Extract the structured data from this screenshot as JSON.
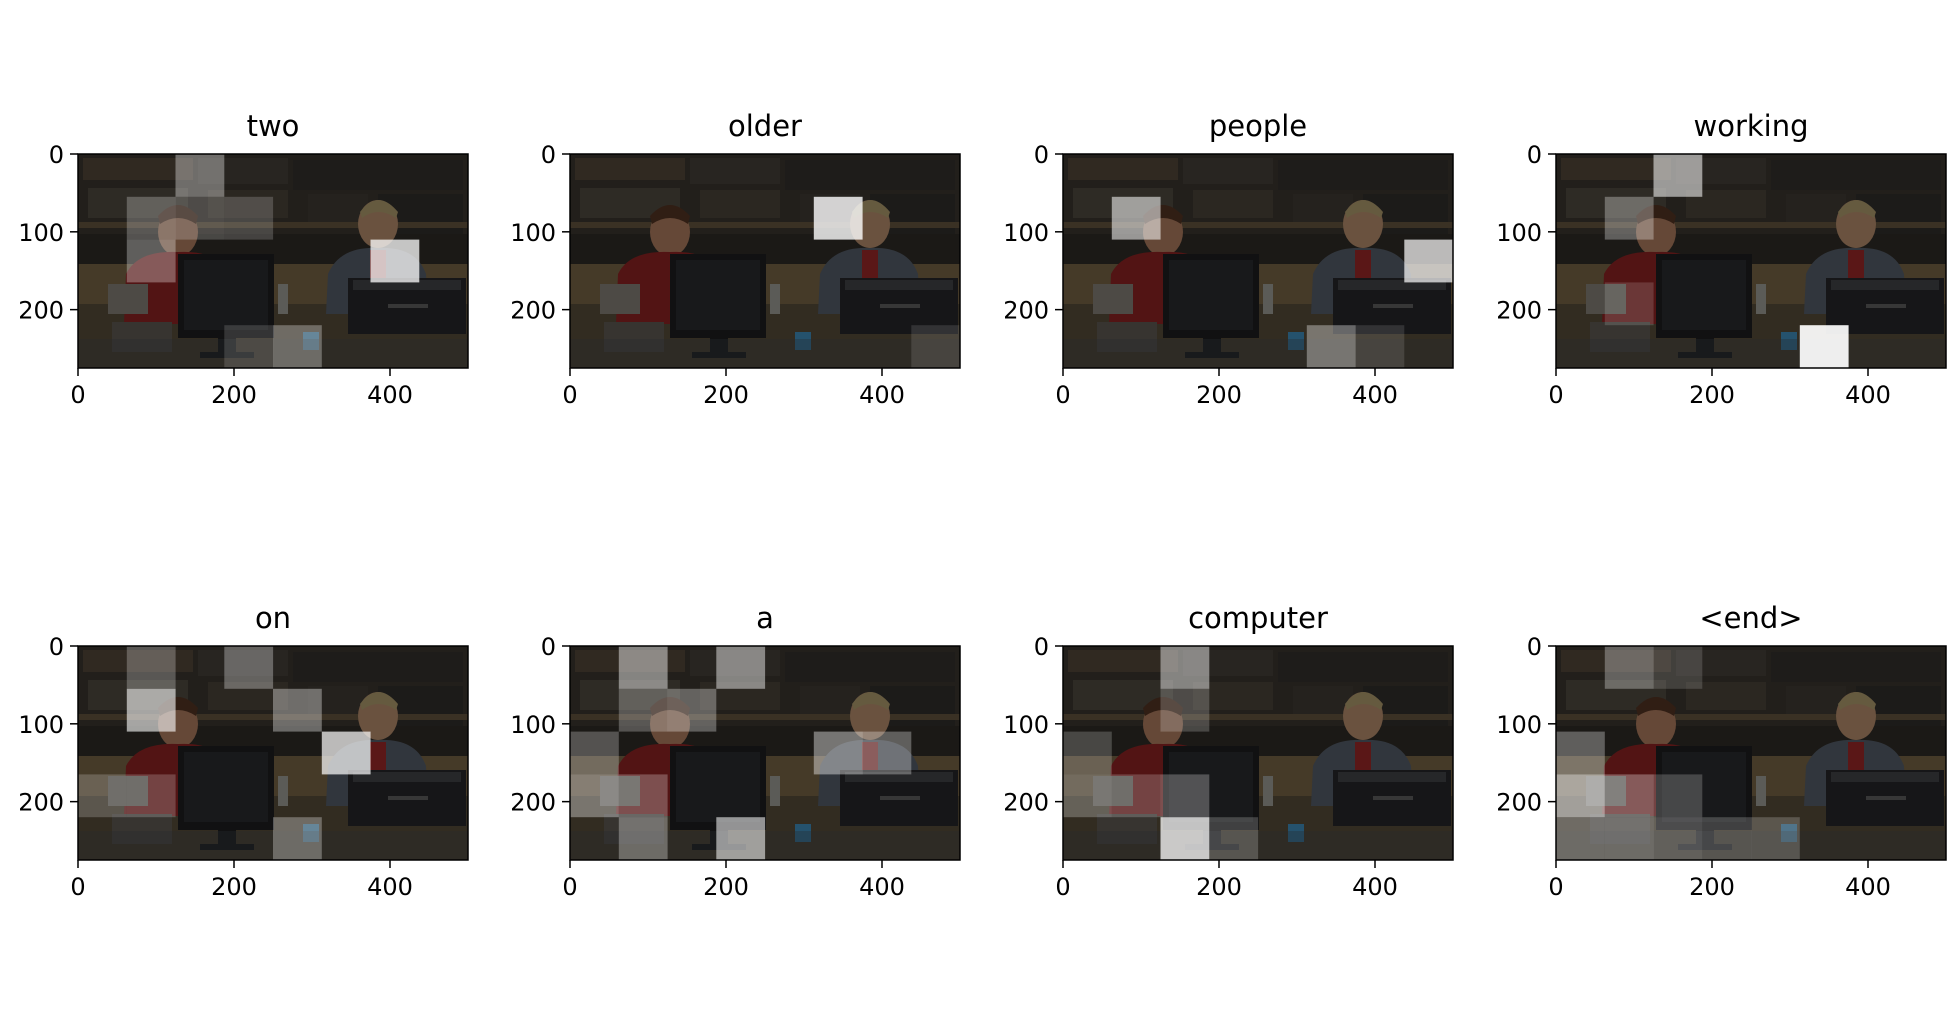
{
  "chart_data": [
    {
      "type": "heatmap",
      "title": "two",
      "xlim": [
        0,
        500
      ],
      "ylim": [
        275,
        0
      ],
      "xticks": [
        "0",
        "200",
        "400"
      ],
      "yticks": [
        "0",
        "100",
        "200"
      ],
      "attention_grid_cols": 8,
      "attention_grid_rows": 5,
      "highlights": [
        {
          "col": 2,
          "row": 0,
          "alpha": 0.35
        },
        {
          "col": 1,
          "row": 1,
          "alpha": 0.25
        },
        {
          "col": 2,
          "row": 1,
          "alpha": 0.2
        },
        {
          "col": 3,
          "row": 1,
          "alpha": 0.18
        },
        {
          "col": 1,
          "row": 2,
          "alpha": 0.3
        },
        {
          "col": 6,
          "row": 2,
          "alpha": 0.75
        },
        {
          "col": 4,
          "row": 4,
          "alpha": 0.3
        },
        {
          "col": 3,
          "row": 4,
          "alpha": 0.15
        }
      ]
    },
    {
      "type": "heatmap",
      "title": "older",
      "xlim": [
        0,
        500
      ],
      "ylim": [
        275,
        0
      ],
      "xticks": [
        "0",
        "200",
        "400"
      ],
      "yticks": [
        "0",
        "100",
        "200"
      ],
      "attention_grid_cols": 8,
      "attention_grid_rows": 5,
      "highlights": [
        {
          "col": 5,
          "row": 1,
          "alpha": 0.8
        },
        {
          "col": 7,
          "row": 4,
          "alpha": 0.12
        }
      ]
    },
    {
      "type": "heatmap",
      "title": "people",
      "xlim": [
        0,
        500
      ],
      "ylim": [
        275,
        0
      ],
      "xticks": [
        "0",
        "200",
        "400"
      ],
      "yticks": [
        "0",
        "100",
        "200"
      ],
      "attention_grid_cols": 8,
      "attention_grid_rows": 5,
      "highlights": [
        {
          "col": 1,
          "row": 1,
          "alpha": 0.55
        },
        {
          "col": 7,
          "row": 2,
          "alpha": 0.7
        },
        {
          "col": 5,
          "row": 4,
          "alpha": 0.35
        },
        {
          "col": 6,
          "row": 4,
          "alpha": 0.12
        }
      ]
    },
    {
      "type": "heatmap",
      "title": "working",
      "xlim": [
        0,
        500
      ],
      "ylim": [
        275,
        0
      ],
      "xticks": [
        "0",
        "200",
        "400"
      ],
      "yticks": [
        "0",
        "100",
        "200"
      ],
      "attention_grid_cols": 8,
      "attention_grid_rows": 5,
      "highlights": [
        {
          "col": 2,
          "row": 0,
          "alpha": 0.55
        },
        {
          "col": 1,
          "row": 1,
          "alpha": 0.3
        },
        {
          "col": 5,
          "row": 4,
          "alpha": 0.92
        },
        {
          "col": 1,
          "row": 3,
          "alpha": 0.15
        }
      ]
    },
    {
      "type": "heatmap",
      "title": "on",
      "xlim": [
        0,
        500
      ],
      "ylim": [
        275,
        0
      ],
      "xticks": [
        "0",
        "200",
        "400"
      ],
      "yticks": [
        "0",
        "100",
        "200"
      ],
      "attention_grid_cols": 8,
      "attention_grid_rows": 5,
      "highlights": [
        {
          "col": 1,
          "row": 0,
          "alpha": 0.25
        },
        {
          "col": 3,
          "row": 0,
          "alpha": 0.3
        },
        {
          "col": 1,
          "row": 1,
          "alpha": 0.6
        },
        {
          "col": 4,
          "row": 1,
          "alpha": 0.35
        },
        {
          "col": 5,
          "row": 2,
          "alpha": 0.7
        },
        {
          "col": 1,
          "row": 3,
          "alpha": 0.2
        },
        {
          "col": 0,
          "row": 3,
          "alpha": 0.2
        },
        {
          "col": 4,
          "row": 4,
          "alpha": 0.3
        }
      ]
    },
    {
      "type": "heatmap",
      "title": "a",
      "xlim": [
        0,
        500
      ],
      "ylim": [
        275,
        0
      ],
      "xticks": [
        "0",
        "200",
        "400"
      ],
      "yticks": [
        "0",
        "100",
        "200"
      ],
      "attention_grid_cols": 8,
      "attention_grid_rows": 5,
      "highlights": [
        {
          "col": 1,
          "row": 0,
          "alpha": 0.45
        },
        {
          "col": 3,
          "row": 0,
          "alpha": 0.45
        },
        {
          "col": 2,
          "row": 1,
          "alpha": 0.3
        },
        {
          "col": 1,
          "row": 1,
          "alpha": 0.25
        },
        {
          "col": 5,
          "row": 2,
          "alpha": 0.4
        },
        {
          "col": 6,
          "row": 2,
          "alpha": 0.3
        },
        {
          "col": 0,
          "row": 2,
          "alpha": 0.25
        },
        {
          "col": 0,
          "row": 3,
          "alpha": 0.35
        },
        {
          "col": 1,
          "row": 3,
          "alpha": 0.25
        },
        {
          "col": 3,
          "row": 4,
          "alpha": 0.55
        },
        {
          "col": 1,
          "row": 4,
          "alpha": 0.3
        }
      ]
    },
    {
      "type": "heatmap",
      "title": "computer",
      "xlim": [
        0,
        500
      ],
      "ylim": [
        275,
        0
      ],
      "xticks": [
        "0",
        "200",
        "400"
      ],
      "yticks": [
        "0",
        "100",
        "200"
      ],
      "attention_grid_cols": 8,
      "attention_grid_rows": 5,
      "highlights": [
        {
          "col": 2,
          "row": 0,
          "alpha": 0.45
        },
        {
          "col": 2,
          "row": 1,
          "alpha": 0.2
        },
        {
          "col": 2,
          "row": 3,
          "alpha": 0.25
        },
        {
          "col": 2,
          "row": 4,
          "alpha": 0.75
        },
        {
          "col": 3,
          "row": 4,
          "alpha": 0.2
        },
        {
          "col": 0,
          "row": 3,
          "alpha": 0.25
        },
        {
          "col": 0,
          "row": 2,
          "alpha": 0.2
        },
        {
          "col": 1,
          "row": 3,
          "alpha": 0.2
        }
      ]
    },
    {
      "type": "heatmap",
      "title": "<end>",
      "xlim": [
        0,
        500
      ],
      "ylim": [
        275,
        0
      ],
      "xticks": [
        "0",
        "200",
        "400"
      ],
      "yticks": [
        "0",
        "100",
        "200"
      ],
      "attention_grid_cols": 8,
      "attention_grid_rows": 5,
      "highlights": [
        {
          "col": 1,
          "row": 0,
          "alpha": 0.3
        },
        {
          "col": 2,
          "row": 0,
          "alpha": 0.15
        },
        {
          "col": 0,
          "row": 3,
          "alpha": 0.55
        },
        {
          "col": 0,
          "row": 2,
          "alpha": 0.3
        },
        {
          "col": 1,
          "row": 3,
          "alpha": 0.3
        },
        {
          "col": 1,
          "row": 4,
          "alpha": 0.3
        },
        {
          "col": 0,
          "row": 4,
          "alpha": 0.3
        },
        {
          "col": 2,
          "row": 4,
          "alpha": 0.25
        },
        {
          "col": 3,
          "row": 4,
          "alpha": 0.2
        },
        {
          "col": 4,
          "row": 4,
          "alpha": 0.2
        },
        {
          "col": 2,
          "row": 3,
          "alpha": 0.2
        }
      ]
    }
  ]
}
